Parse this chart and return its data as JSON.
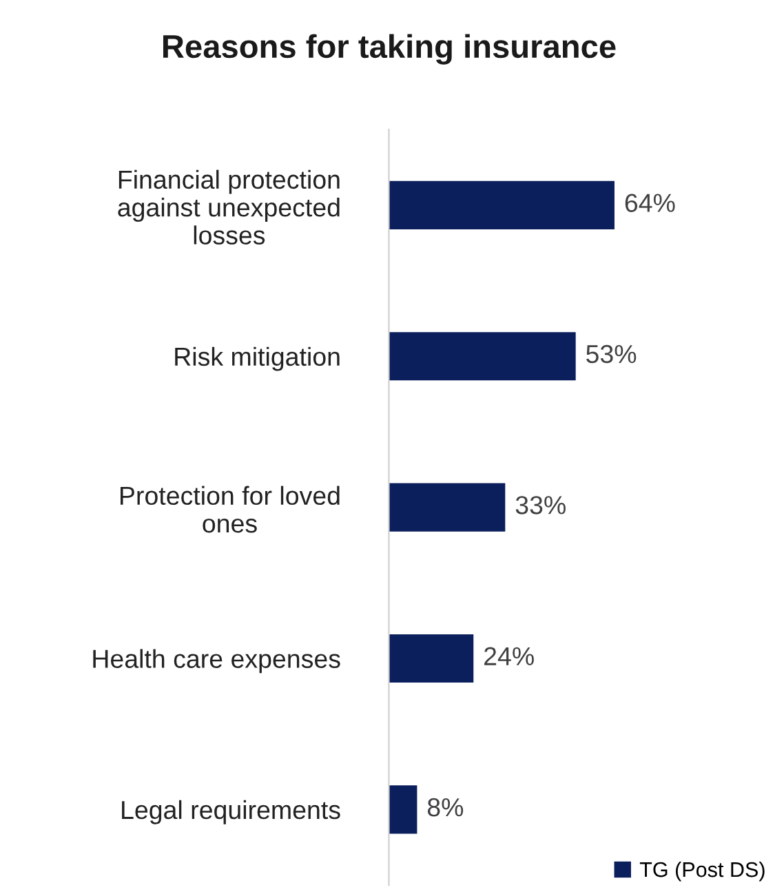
{
  "chart_data": {
    "type": "bar",
    "orientation": "horizontal",
    "title": "Reasons for taking insurance",
    "categories": [
      "Financial protection\nagainst unexpected\nlosses",
      "Risk mitigation",
      "Protection for loved\nones",
      "Health care expenses",
      "Legal requirements"
    ],
    "series": [
      {
        "name": "TG (Post DS)",
        "color": "#0b1f5c",
        "values": [
          64,
          53,
          33,
          24,
          8
        ],
        "value_labels": [
          "64%",
          "53%",
          "33%",
          "24%",
          "8%"
        ]
      }
    ],
    "legend": "bottom right",
    "grid": false,
    "tick_labels": "y"
  }
}
